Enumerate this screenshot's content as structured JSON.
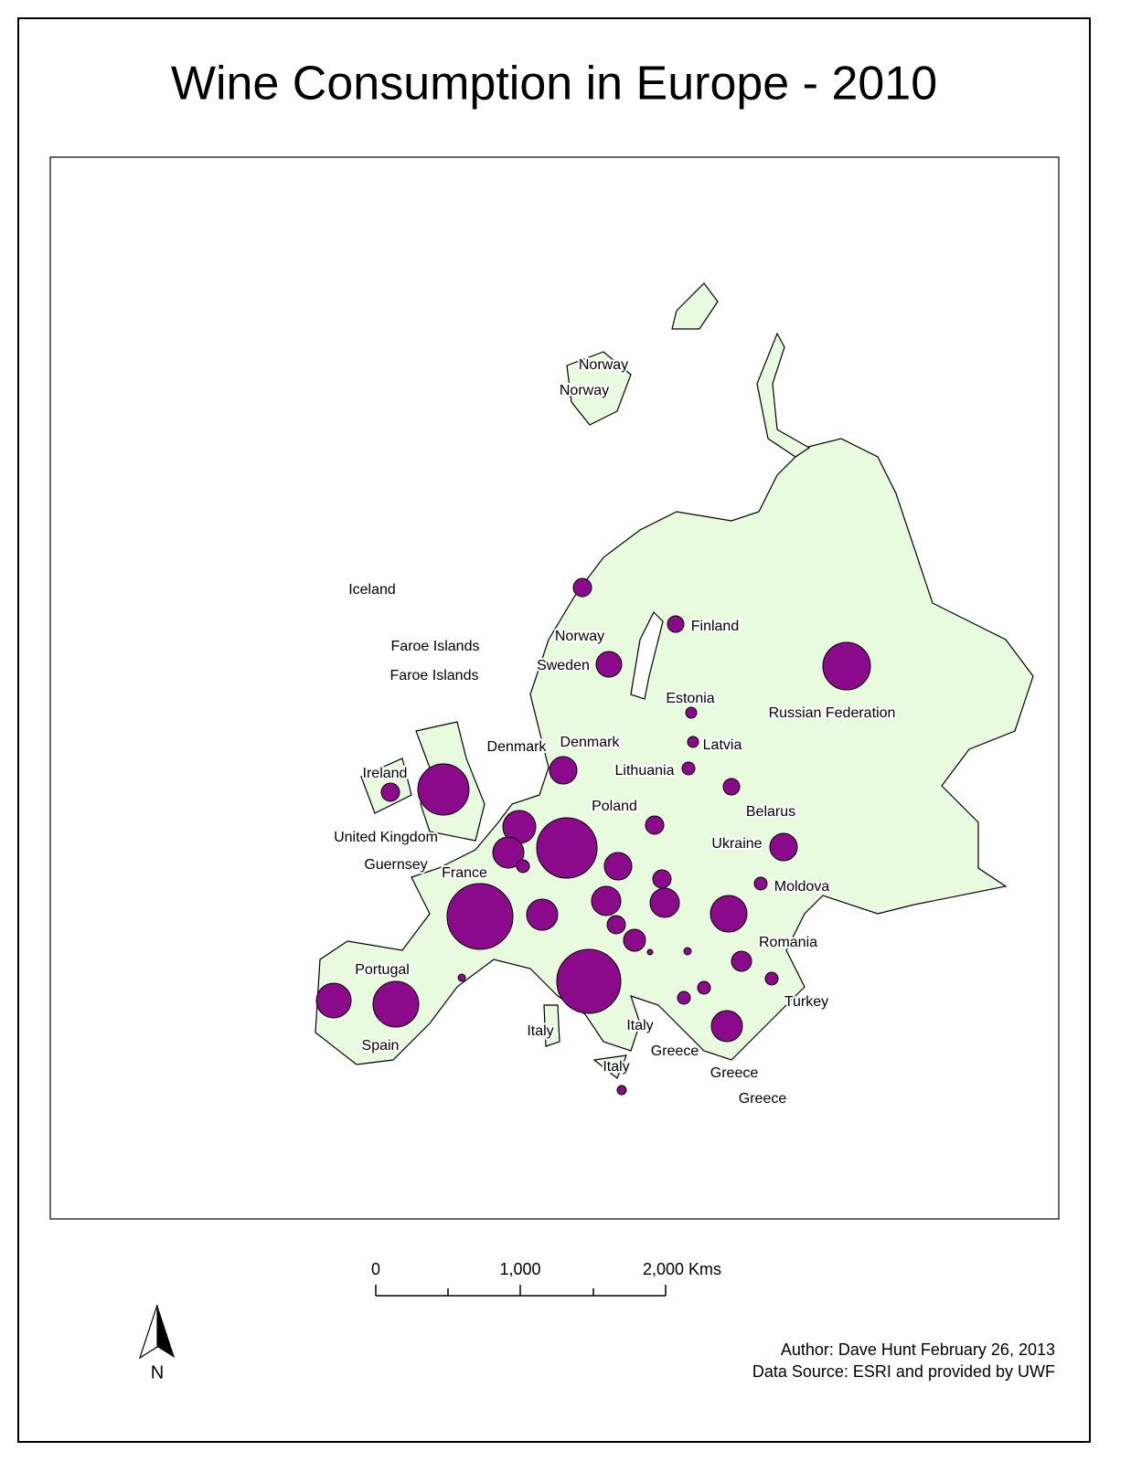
{
  "title": "Wine Consumption in Europe - 2010",
  "labels": [
    "Norway",
    "Norway",
    "Iceland",
    "Finland",
    "Norway",
    "Faroe Islands",
    "Sweden",
    "Faroe Islands",
    "Estonia",
    "Russian Federation",
    "Latvia",
    "Denmark",
    "Denmark",
    "Lithuania",
    "Ireland",
    "Belarus",
    "Poland",
    "United Kingdom",
    "Ukraine",
    "Guernsey",
    "France",
    "Moldova",
    "Romania",
    "Portugal",
    "Turkey",
    "Italy",
    "Italy",
    "Spain",
    "Greece",
    "Italy",
    "Greece",
    "Greece"
  ],
  "scale_bar": {
    "labels": [
      "0",
      "1,000",
      "2,000 Kms"
    ]
  },
  "north_label": "N",
  "credits": {
    "author": "Author: Dave Hunt   February 26, 2013",
    "source": "Data Source: ESRI and provided by UWF"
  }
}
